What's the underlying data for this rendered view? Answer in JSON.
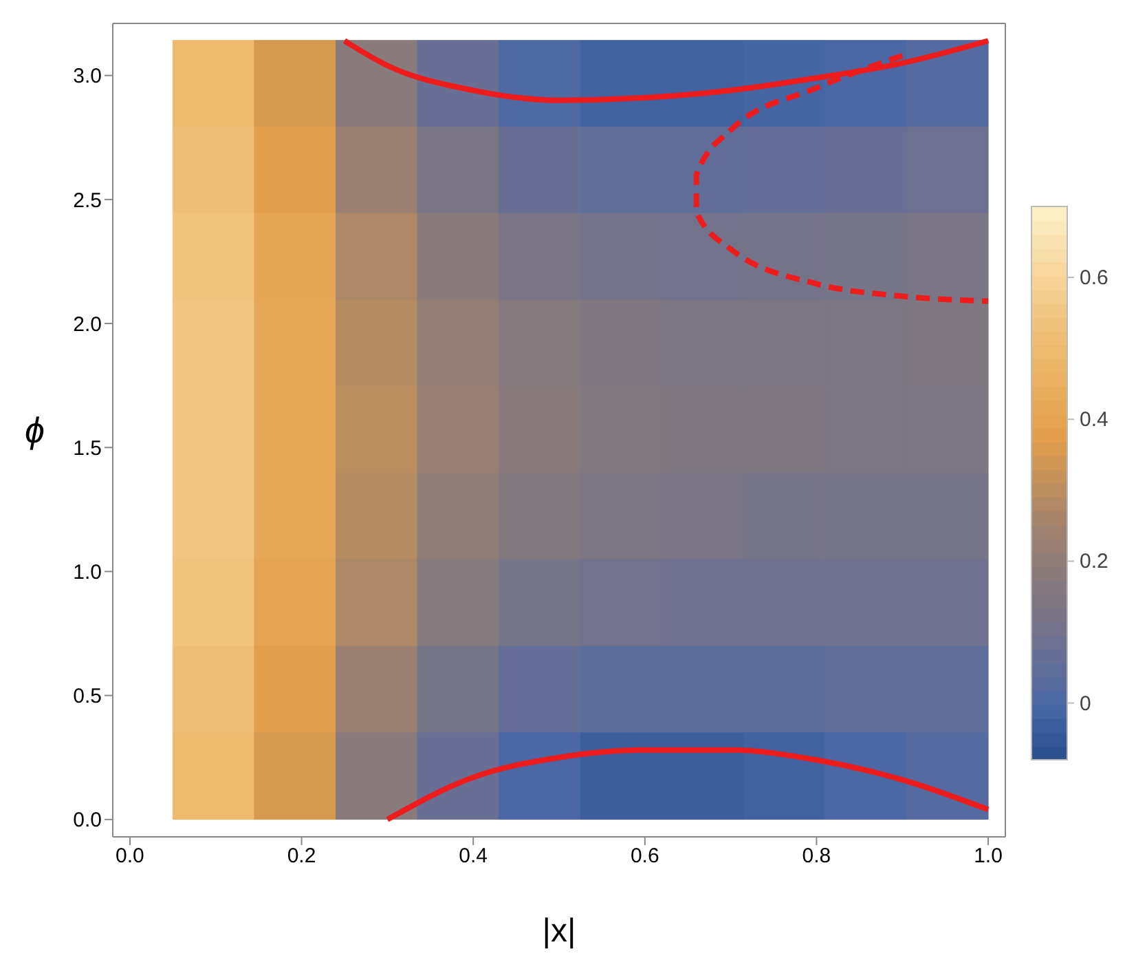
{
  "chart_data": {
    "type": "heatmap",
    "xlabel": "|x|",
    "ylabel": "ϕ",
    "x": [
      0.0975,
      0.1925,
      0.2875,
      0.3825,
      0.4775,
      0.5725,
      0.6675,
      0.7625,
      0.8575,
      0.9525
    ],
    "y": [
      2.967,
      2.618,
      2.269,
      1.92,
      1.571,
      1.222,
      0.873,
      0.524,
      0.175
    ],
    "cells": [
      [
        0.5,
        0.35,
        0.18,
        0.07,
        0.01,
        -0.02,
        -0.02,
        -0.01,
        0.0,
        0.02
      ],
      [
        0.52,
        0.38,
        0.23,
        0.13,
        0.07,
        0.05,
        0.05,
        0.06,
        0.07,
        0.08
      ],
      [
        0.54,
        0.41,
        0.27,
        0.18,
        0.13,
        0.11,
        0.1,
        0.11,
        0.12,
        0.13
      ],
      [
        0.55,
        0.42,
        0.29,
        0.21,
        0.17,
        0.15,
        0.14,
        0.14,
        0.14,
        0.15
      ],
      [
        0.55,
        0.42,
        0.3,
        0.22,
        0.18,
        0.16,
        0.15,
        0.15,
        0.14,
        0.14
      ],
      [
        0.55,
        0.42,
        0.29,
        0.2,
        0.16,
        0.14,
        0.13,
        0.12,
        0.12,
        0.12
      ],
      [
        0.54,
        0.4,
        0.27,
        0.17,
        0.12,
        0.1,
        0.09,
        0.09,
        0.09,
        0.09
      ],
      [
        0.52,
        0.38,
        0.23,
        0.12,
        0.06,
        0.04,
        0.04,
        0.04,
        0.05,
        0.05
      ],
      [
        0.5,
        0.35,
        0.18,
        0.07,
        0.0,
        -0.03,
        -0.03,
        -0.02,
        0.0,
        0.02
      ]
    ],
    "clim": [
      -0.08,
      0.7
    ],
    "cticks": [
      0,
      0.2,
      0.4,
      0.6
    ],
    "series": [
      {
        "type": "line",
        "color": "#ee1c1c",
        "line_style": "solid",
        "x": [
          0.25,
          0.3,
          0.4,
          0.5,
          0.6,
          0.7,
          0.8,
          0.9,
          1.0
        ],
        "values": [
          3.14,
          3.04,
          2.94,
          2.9,
          2.91,
          2.94,
          2.99,
          3.05,
          3.14
        ]
      },
      {
        "type": "line",
        "color": "#ee1c1c",
        "line_style": "dashed",
        "x": [
          0.9,
          0.8,
          0.7,
          0.66,
          0.66,
          0.7,
          0.8,
          0.9,
          1.0
        ],
        "values": [
          3.08,
          2.95,
          2.78,
          2.6,
          2.45,
          2.3,
          2.16,
          2.11,
          2.09
        ]
      },
      {
        "type": "line",
        "color": "#ee1c1c",
        "line_style": "solid",
        "x": [
          0.3,
          0.4,
          0.5,
          0.6,
          0.7,
          0.8,
          0.9,
          1.0
        ],
        "values": [
          0.0,
          0.17,
          0.25,
          0.28,
          0.28,
          0.24,
          0.16,
          0.04
        ]
      }
    ],
    "xlim": [
      -0.02,
      1.02
    ],
    "xticks": [
      {
        "value": 0,
        "label": "0.0"
      },
      0.2,
      0.4,
      0.6,
      0.8,
      {
        "value": 1,
        "label": "1.0"
      }
    ],
    "ylim": [
      -0.07,
      3.21
    ],
    "yticks": [
      {
        "value": 0,
        "label": "0.0"
      },
      0.5,
      {
        "value": 1,
        "label": "1.0"
      },
      1.5,
      {
        "value": 2,
        "label": "2.0"
      },
      2.5,
      {
        "value": 3,
        "label": "3.0"
      }
    ],
    "tick_labels": "xy"
  }
}
